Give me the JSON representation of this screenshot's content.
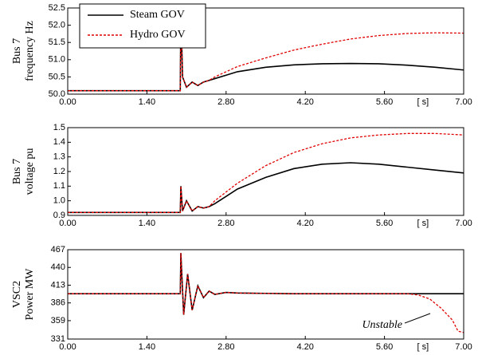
{
  "chart_data": [
    {
      "type": "line",
      "ylabel": [
        "Bus 7",
        "frequency Hz"
      ],
      "x_unit": "[ s]",
      "x": [
        0,
        1.99,
        2.0,
        2.03,
        2.1,
        2.2,
        2.3,
        2.4,
        2.5,
        2.6,
        2.8,
        3.0,
        3.5,
        4.0,
        4.5,
        5.0,
        5.5,
        6.0,
        6.5,
        7.0
      ],
      "series": [
        {
          "name": "Steam GOV",
          "color": "#000000",
          "dashed": false,
          "values": [
            50.1,
            50.1,
            52.5,
            50.5,
            50.2,
            50.35,
            50.25,
            50.35,
            50.4,
            50.45,
            50.55,
            50.65,
            50.78,
            50.85,
            50.88,
            50.89,
            50.88,
            50.84,
            50.78,
            50.7
          ]
        },
        {
          "name": "Hydro GOV",
          "color": "#e00000",
          "dashed": true,
          "values": [
            50.1,
            50.1,
            52.5,
            50.5,
            50.2,
            50.35,
            50.25,
            50.35,
            50.4,
            50.5,
            50.65,
            50.8,
            51.05,
            51.28,
            51.45,
            51.6,
            51.7,
            51.76,
            51.78,
            51.77
          ]
        }
      ],
      "xlim": [
        0,
        7
      ],
      "xticks": [
        {
          "value": 0,
          "label": "0.00"
        },
        {
          "value": 1.4,
          "label": "1.40"
        },
        {
          "value": 2.8,
          "label": "2.80"
        },
        {
          "value": 4.2,
          "label": "4.20"
        },
        {
          "value": 5.6,
          "label": "5.60"
        },
        {
          "value": 7,
          "label": "7.00"
        }
      ],
      "ylim": [
        50,
        52.5
      ],
      "yticks": [
        {
          "value": 50,
          "label": "50.0"
        },
        {
          "value": 50.5,
          "label": "50.5"
        },
        {
          "value": 51,
          "label": "51.0"
        },
        {
          "value": 51.5,
          "label": "51.5"
        },
        {
          "value": 52,
          "label": "52.0"
        },
        {
          "value": 52.5,
          "label": "52.5"
        }
      ],
      "legend": "upper left"
    },
    {
      "type": "line",
      "ylabel": [
        "Bus 7",
        "voltage pu"
      ],
      "x_unit": "[ s]",
      "x": [
        0,
        1.99,
        2.0,
        2.03,
        2.1,
        2.2,
        2.3,
        2.4,
        2.5,
        2.6,
        2.8,
        3.0,
        3.5,
        4.0,
        4.5,
        5.0,
        5.5,
        6.0,
        6.5,
        7.0
      ],
      "series": [
        {
          "color": "#000000",
          "dashed": false,
          "values": [
            0.92,
            0.92,
            1.1,
            0.93,
            1.0,
            0.93,
            0.96,
            0.95,
            0.96,
            0.98,
            1.03,
            1.08,
            1.16,
            1.22,
            1.25,
            1.26,
            1.25,
            1.23,
            1.21,
            1.19
          ]
        },
        {
          "color": "#e00000",
          "dashed": true,
          "values": [
            0.92,
            0.92,
            1.1,
            0.93,
            1.0,
            0.93,
            0.96,
            0.95,
            0.96,
            1.0,
            1.06,
            1.12,
            1.24,
            1.33,
            1.39,
            1.43,
            1.45,
            1.46,
            1.46,
            1.45
          ]
        }
      ],
      "xlim": [
        0,
        7
      ],
      "xticks": [
        {
          "value": 0,
          "label": "0.00"
        },
        {
          "value": 1.4,
          "label": "1.40"
        },
        {
          "value": 2.8,
          "label": "2.80"
        },
        {
          "value": 4.2,
          "label": "4.20"
        },
        {
          "value": 5.6,
          "label": "5.60"
        },
        {
          "value": 7,
          "label": "7.00"
        }
      ],
      "ylim": [
        0.9,
        1.5
      ],
      "yticks": [
        0.9,
        {
          "value": 1.0,
          "label": "1.0"
        },
        1.1,
        1.2,
        1.3,
        1.4,
        1.5
      ]
    },
    {
      "type": "line",
      "ylabel": [
        "VSC2",
        "Power MW"
      ],
      "x_unit": "[ s]",
      "annotation": "Unstable",
      "x": [
        0,
        1.99,
        2.0,
        2.05,
        2.12,
        2.2,
        2.3,
        2.4,
        2.5,
        2.6,
        2.8,
        3.0,
        3.5,
        4.0,
        4.5,
        5.0,
        5.5,
        6.0,
        6.2,
        6.4,
        6.6,
        6.8,
        6.9,
        7.0
      ],
      "series": [
        {
          "color": "#000000",
          "dashed": false,
          "values": [
            400,
            400,
            462,
            368,
            430,
            375,
            412,
            394,
            404,
            399,
            402,
            401,
            400.5,
            400,
            400,
            400,
            400,
            400,
            400,
            400,
            400,
            400,
            400,
            400
          ]
        },
        {
          "color": "#e00000",
          "dashed": true,
          "values": [
            400,
            400,
            462,
            368,
            430,
            375,
            412,
            394,
            404,
            399,
            402,
            401,
            400.5,
            400,
            400,
            400,
            400,
            400,
            398,
            392,
            378,
            360,
            343,
            341
          ]
        }
      ],
      "xlim": [
        0,
        7
      ],
      "xticks": [
        {
          "value": 0,
          "label": "0.00"
        },
        {
          "value": 1.4,
          "label": "1.40"
        },
        {
          "value": 2.8,
          "label": "2.80"
        },
        {
          "value": 4.2,
          "label": "4.20"
        },
        {
          "value": 5.6,
          "label": "5.60"
        },
        {
          "value": 7,
          "label": "7.00"
        }
      ],
      "ylim": [
        331,
        467
      ],
      "yticks": [
        331,
        359,
        386,
        413,
        440,
        467
      ]
    }
  ]
}
